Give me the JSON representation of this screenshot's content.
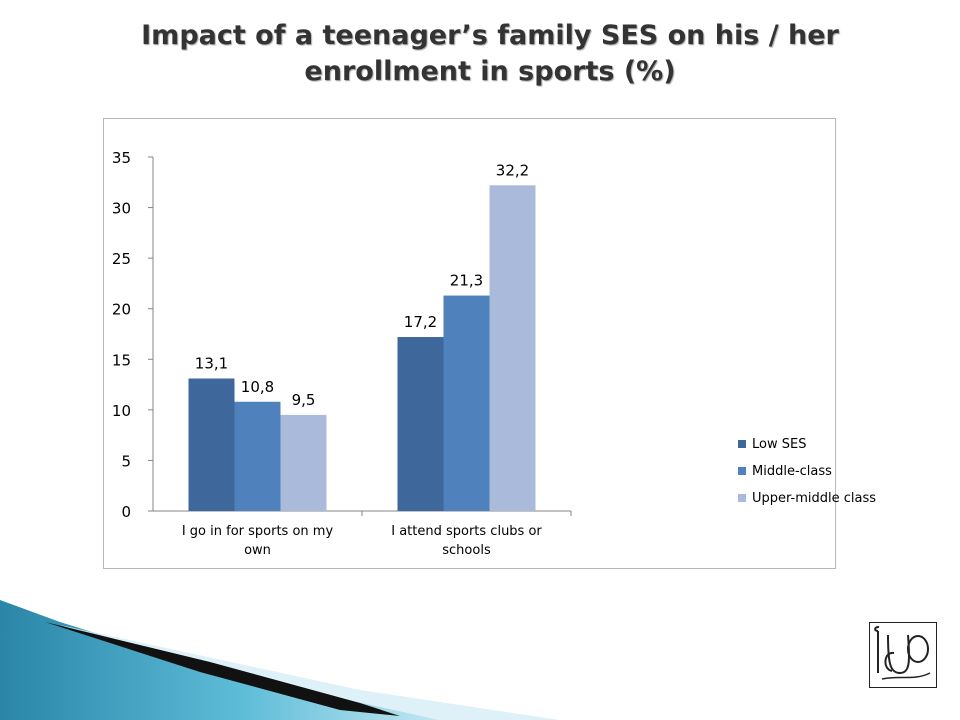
{
  "title": {
    "line1": "Impact of a teenager’s family SES on his / her",
    "line2": "enrollment in sports (%)"
  },
  "chart_data": {
    "type": "bar",
    "title": "Impact of a teenager’s family SES on his / her enrollment in sports (%)",
    "categories": [
      [
        "I go in for sports on my",
        "own"
      ],
      [
        "I attend sports clubs or",
        "schools"
      ]
    ],
    "series": [
      {
        "name": "Low SES",
        "color": "#3e679c",
        "values": [
          13.1,
          17.2
        ],
        "labels": [
          "13,1",
          "17,2"
        ]
      },
      {
        "name": "Middle-class",
        "color": "#4f81bd",
        "values": [
          10.8,
          21.3
        ],
        "labels": [
          "10,8",
          "21,3"
        ]
      },
      {
        "name": "Upper-middle class",
        "color": "#a9badb",
        "values": [
          9.5,
          32.2
        ],
        "labels": [
          "9,5",
          "32,2"
        ]
      }
    ],
    "y_ticks": [
      "0",
      "5",
      "10",
      "15",
      "20",
      "25",
      "30",
      "35"
    ],
    "ylim": [
      0,
      35
    ],
    "xlabel": "",
    "ylabel": "",
    "grid": false,
    "legend_position": "right"
  },
  "decor": {
    "logo_icon": "udo-monogram-icon"
  }
}
